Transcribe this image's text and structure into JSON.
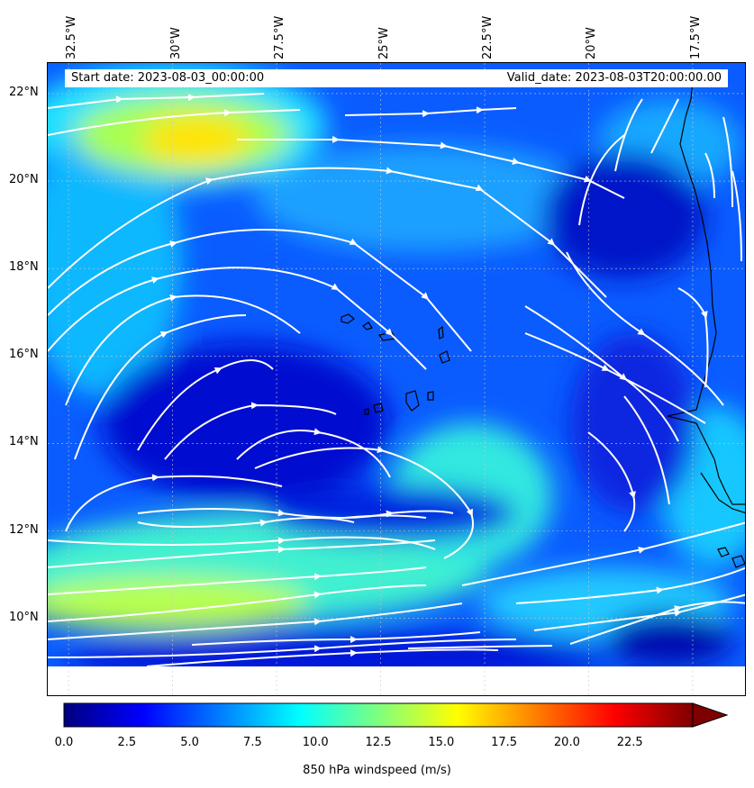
{
  "map": {
    "start_date": "Start date: 2023-08-03_00:00:00",
    "valid_date": "Valid_date: 2023-08-03T20:00:00.00",
    "lon_labels": [
      "32.5°W",
      "30°W",
      "27.5°W",
      "25°W",
      "22.5°W",
      "20°W",
      "17.5°W"
    ],
    "lat_labels": [
      "22°N",
      "20°N",
      "18°N",
      "16°N",
      "14°N",
      "12°N",
      "10°N"
    ],
    "lon_range": [
      -33.0,
      -16.2
    ],
    "lat_range": [
      8.2,
      22.7
    ],
    "data_lat_min": 8.9,
    "features": [
      "850 hPa windspeed filled contours",
      "white streamlines",
      "coastlines of Cape Verde islands and West Africa"
    ]
  },
  "colorbar": {
    "label": "850 hPa windspeed (m/s)",
    "ticks": [
      "0.0",
      "2.5",
      "5.0",
      "7.5",
      "10.0",
      "12.5",
      "15.0",
      "17.5",
      "20.0",
      "22.5"
    ],
    "min": 0,
    "max": 25,
    "extend": "max",
    "colormap": "jet",
    "colors": [
      "#00007f",
      "#0000ff",
      "#007fff",
      "#00ffff",
      "#7fff7f",
      "#ffff00",
      "#ff7f00",
      "#ff0000",
      "#7f0000"
    ]
  }
}
